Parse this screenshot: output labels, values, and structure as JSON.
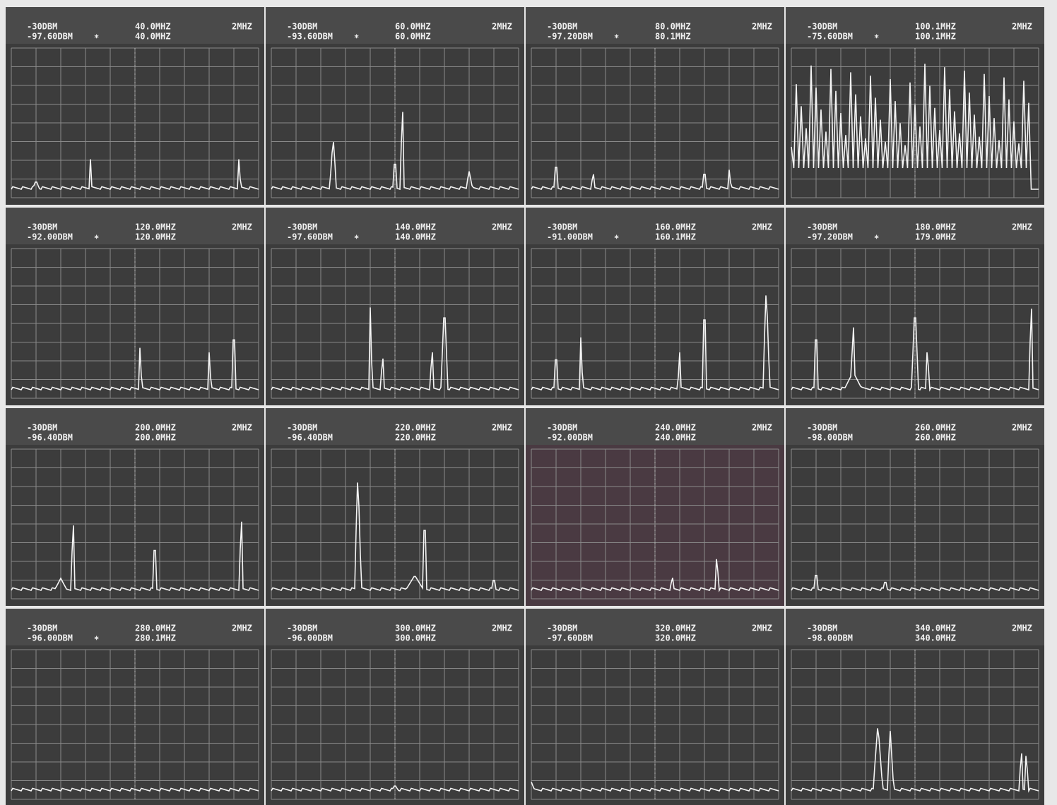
{
  "panels": [
    {
      "ref_level": "-30DBM",
      "marker_level": "-97.60DBM",
      "marker_symbol": "*",
      "center_freq": "40.0MHZ",
      "marker_freq": "40.0MHZ",
      "span": "2MHZ"
    },
    {
      "ref_level": "-30DBM",
      "marker_level": "-93.60DBM",
      "marker_symbol": "*",
      "center_freq": "60.0MHZ",
      "marker_freq": "60.0MHZ",
      "span": "2MHZ"
    },
    {
      "ref_level": "-30DBM",
      "marker_level": "-97.20DBM",
      "marker_symbol": "*",
      "center_freq": "80.0MHZ",
      "marker_freq": "80.1MHZ",
      "span": "2MHZ"
    },
    {
      "ref_level": "-30DBM",
      "marker_level": "-75.60DBM",
      "marker_symbol": "*",
      "center_freq": "100.1MHZ",
      "marker_freq": "100.1MHZ",
      "span": "2MHZ"
    },
    {
      "ref_level": "-30DBM",
      "marker_level": "-92.00DBM",
      "marker_symbol": "*",
      "center_freq": "120.0MHZ",
      "marker_freq": "120.0MHZ",
      "span": "2MHZ"
    },
    {
      "ref_level": "-30DBM",
      "marker_level": "-97.60DBM",
      "marker_symbol": "*",
      "center_freq": "140.0MHZ",
      "marker_freq": "140.0MHZ",
      "span": "2MHZ"
    },
    {
      "ref_level": "-30DBM",
      "marker_level": "-91.00DBM",
      "marker_symbol": "*",
      "center_freq": "160.0MHZ",
      "marker_freq": "160.1MHZ",
      "span": "2MHZ"
    },
    {
      "ref_level": "-30DBM",
      "marker_level": "-97.20DBM",
      "marker_symbol": "*",
      "center_freq": "180.0MHZ",
      "marker_freq": "179.0MHZ",
      "span": "2MHZ"
    },
    {
      "ref_level": "-30DBM",
      "marker_level": "-96.40DBM",
      "center_freq": "200.0MHZ",
      "marker_freq": "200.0MHZ",
      "span": "2MHZ"
    },
    {
      "ref_level": "-30DBM",
      "marker_level": "-96.40DBM",
      "center_freq": "220.0MHZ",
      "marker_freq": "220.0MHZ",
      "span": "2MHZ"
    },
    {
      "ref_level": "-30DBM",
      "marker_level": "-92.00DBM",
      "center_freq": "240.0MHZ",
      "marker_freq": "240.0MHZ",
      "span": "2MHZ"
    },
    {
      "ref_level": "-30DBM",
      "marker_level": "-98.00DBM",
      "center_freq": "260.0MHZ",
      "marker_freq": "260.0MHZ",
      "span": "2MHZ"
    },
    {
      "ref_level": "-30DBM",
      "marker_level": "-96.00DBM",
      "marker_symbol": "*",
      "center_freq": "280.0MHZ",
      "marker_freq": "280.1MHZ",
      "span": "2MHZ"
    },
    {
      "ref_level": "-30DBM",
      "marker_level": "-96.00DBM",
      "center_freq": "300.0MHZ",
      "marker_freq": "300.0MHZ",
      "span": "2MHZ"
    },
    {
      "ref_level": "-30DBM",
      "marker_level": "-97.60DBM",
      "center_freq": "320.0MHZ",
      "marker_freq": "320.0MHZ",
      "span": "2MHZ"
    },
    {
      "ref_level": "-30DBM",
      "marker_level": "-98.00DBM",
      "center_freq": "340.0MHZ",
      "marker_freq": "340.0MHZ",
      "span": "2MHZ"
    }
  ]
}
